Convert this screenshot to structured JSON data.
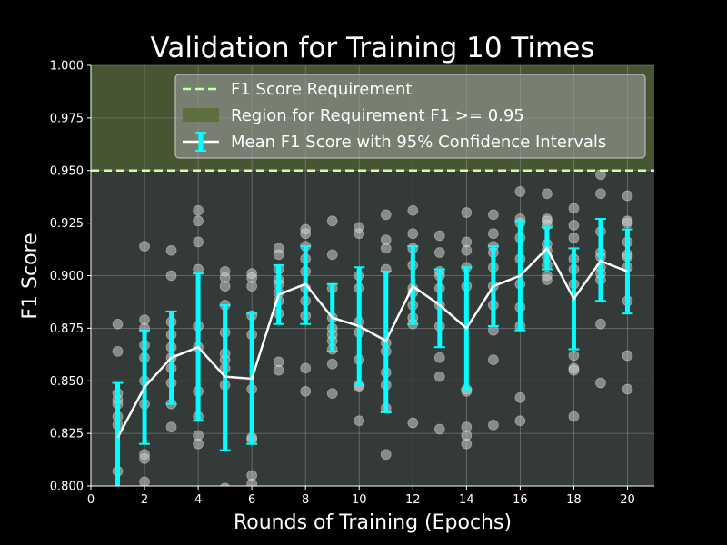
{
  "chart_data": {
    "type": "line",
    "title": "Validation for Training 10 Times",
    "xlabel": "Rounds of Training (Epochs)",
    "ylabel": "F1 Score",
    "xlim": [
      0,
      21
    ],
    "ylim": [
      0.8,
      1.0
    ],
    "x_ticks": [
      0,
      2,
      4,
      6,
      8,
      10,
      12,
      14,
      16,
      18,
      20
    ],
    "y_ticks": [
      0.8,
      0.825,
      0.85,
      0.875,
      0.9,
      0.925,
      0.95,
      0.975,
      1.0
    ],
    "x_tick_labels": [
      "0",
      "2",
      "4",
      "6",
      "8",
      "10",
      "12",
      "14",
      "16",
      "18",
      "20"
    ],
    "y_tick_labels": [
      "0.800",
      "0.825",
      "0.850",
      "0.875",
      "0.900",
      "0.925",
      "0.950",
      "0.975",
      "1.000"
    ],
    "grid": true,
    "legend_position": "top-right",
    "requirement": {
      "value": 0.95,
      "legend_label": "F1 Score Requirement",
      "region_label": "Region for Requirement F1 >= 0.95",
      "line_color": "#ccffaa",
      "region_color": "#556b2f"
    },
    "colors": {
      "background": "#000000",
      "plot_background": "#343a37",
      "mean_line": "#ffffff",
      "error_bar": "#00ffff",
      "scatter": "#cccccc",
      "grid": "#8c8c8c"
    },
    "mean_series": {
      "name": "Mean F1 Score with 95% Confidence Intervals",
      "x": [
        1,
        2,
        3,
        4,
        5,
        6,
        7,
        8,
        9,
        10,
        11,
        12,
        13,
        14,
        15,
        16,
        17,
        18,
        19,
        20
      ],
      "y": [
        0.823,
        0.847,
        0.861,
        0.866,
        0.852,
        0.851,
        0.891,
        0.896,
        0.88,
        0.876,
        0.869,
        0.895,
        0.886,
        0.875,
        0.895,
        0.9,
        0.913,
        0.889,
        0.907,
        0.902
      ],
      "ci_low": [
        0.797,
        0.82,
        0.839,
        0.831,
        0.817,
        0.82,
        0.877,
        0.877,
        0.864,
        0.848,
        0.835,
        0.877,
        0.866,
        0.846,
        0.876,
        0.874,
        0.903,
        0.865,
        0.888,
        0.882
      ],
      "ci_high": [
        0.849,
        0.874,
        0.883,
        0.901,
        0.886,
        0.882,
        0.905,
        0.914,
        0.896,
        0.904,
        0.902,
        0.914,
        0.903,
        0.904,
        0.914,
        0.926,
        0.923,
        0.913,
        0.927,
        0.922
      ]
    },
    "trials": {
      "points": [
        [
          1,
          0.877
        ],
        [
          1,
          0.864
        ],
        [
          1,
          0.844
        ],
        [
          1,
          0.841
        ],
        [
          1,
          0.839
        ],
        [
          1,
          0.833
        ],
        [
          1,
          0.829
        ],
        [
          1,
          0.807
        ],
        [
          1,
          0.795
        ],
        [
          1,
          0.798
        ],
        [
          2,
          0.914
        ],
        [
          2,
          0.879
        ],
        [
          2,
          0.875
        ],
        [
          2,
          0.867
        ],
        [
          2,
          0.861
        ],
        [
          2,
          0.85
        ],
        [
          2,
          0.839
        ],
        [
          2,
          0.815
        ],
        [
          2,
          0.813
        ],
        [
          2,
          0.802
        ],
        [
          3,
          0.912
        ],
        [
          3,
          0.9
        ],
        [
          3,
          0.878
        ],
        [
          3,
          0.872
        ],
        [
          3,
          0.866
        ],
        [
          3,
          0.861
        ],
        [
          3,
          0.856
        ],
        [
          3,
          0.849
        ],
        [
          3,
          0.839
        ],
        [
          3,
          0.828
        ],
        [
          4,
          0.931
        ],
        [
          4,
          0.926
        ],
        [
          4,
          0.916
        ],
        [
          4,
          0.903
        ],
        [
          4,
          0.876
        ],
        [
          4,
          0.866
        ],
        [
          4,
          0.845
        ],
        [
          4,
          0.833
        ],
        [
          4,
          0.824
        ],
        [
          4,
          0.82
        ],
        [
          5,
          0.902
        ],
        [
          5,
          0.899
        ],
        [
          5,
          0.895
        ],
        [
          5,
          0.886
        ],
        [
          5,
          0.873
        ],
        [
          5,
          0.863
        ],
        [
          5,
          0.86
        ],
        [
          5,
          0.856
        ],
        [
          5,
          0.848
        ],
        [
          5,
          0.799
        ],
        [
          6,
          0.901
        ],
        [
          6,
          0.899
        ],
        [
          6,
          0.895
        ],
        [
          6,
          0.881
        ],
        [
          6,
          0.872
        ],
        [
          6,
          0.846
        ],
        [
          6,
          0.823
        ],
        [
          6,
          0.822
        ],
        [
          6,
          0.805
        ],
        [
          6,
          0.801
        ],
        [
          7,
          0.913
        ],
        [
          7,
          0.91
        ],
        [
          7,
          0.903
        ],
        [
          7,
          0.898
        ],
        [
          7,
          0.896
        ],
        [
          7,
          0.892
        ],
        [
          7,
          0.888
        ],
        [
          7,
          0.882
        ],
        [
          7,
          0.859
        ],
        [
          7,
          0.855
        ],
        [
          8,
          0.922
        ],
        [
          8,
          0.92
        ],
        [
          8,
          0.914
        ],
        [
          8,
          0.908
        ],
        [
          8,
          0.902
        ],
        [
          8,
          0.894
        ],
        [
          8,
          0.888
        ],
        [
          8,
          0.881
        ],
        [
          8,
          0.856
        ],
        [
          8,
          0.845
        ],
        [
          9,
          0.926
        ],
        [
          9,
          0.91
        ],
        [
          9,
          0.894
        ],
        [
          9,
          0.88
        ],
        [
          9,
          0.875
        ],
        [
          9,
          0.872
        ],
        [
          9,
          0.869
        ],
        [
          9,
          0.865
        ],
        [
          9,
          0.858
        ],
        [
          9,
          0.844
        ],
        [
          10,
          0.923
        ],
        [
          10,
          0.92
        ],
        [
          10,
          0.9
        ],
        [
          10,
          0.894
        ],
        [
          10,
          0.878
        ],
        [
          10,
          0.873
        ],
        [
          10,
          0.86
        ],
        [
          10,
          0.848
        ],
        [
          10,
          0.847
        ],
        [
          10,
          0.831
        ],
        [
          11,
          0.929
        ],
        [
          11,
          0.917
        ],
        [
          11,
          0.913
        ],
        [
          11,
          0.903
        ],
        [
          11,
          0.868
        ],
        [
          11,
          0.864
        ],
        [
          11,
          0.854
        ],
        [
          11,
          0.848
        ],
        [
          11,
          0.837
        ],
        [
          11,
          0.815
        ],
        [
          12,
          0.931
        ],
        [
          12,
          0.92
        ],
        [
          12,
          0.913
        ],
        [
          12,
          0.905
        ],
        [
          12,
          0.894
        ],
        [
          12,
          0.892
        ],
        [
          12,
          0.886
        ],
        [
          12,
          0.88
        ],
        [
          12,
          0.877
        ],
        [
          12,
          0.83
        ],
        [
          13,
          0.919
        ],
        [
          13,
          0.911
        ],
        [
          13,
          0.902
        ],
        [
          13,
          0.9
        ],
        [
          13,
          0.894
        ],
        [
          13,
          0.886
        ],
        [
          13,
          0.876
        ],
        [
          13,
          0.861
        ],
        [
          13,
          0.852
        ],
        [
          13,
          0.827
        ],
        [
          14,
          0.93
        ],
        [
          14,
          0.916
        ],
        [
          14,
          0.912
        ],
        [
          14,
          0.904
        ],
        [
          14,
          0.895
        ],
        [
          14,
          0.845
        ],
        [
          14,
          0.828
        ],
        [
          14,
          0.824
        ],
        [
          14,
          0.82
        ],
        [
          14,
          0.846
        ],
        [
          15,
          0.929
        ],
        [
          15,
          0.92
        ],
        [
          15,
          0.914
        ],
        [
          15,
          0.911
        ],
        [
          15,
          0.904
        ],
        [
          15,
          0.895
        ],
        [
          15,
          0.886
        ],
        [
          15,
          0.874
        ],
        [
          15,
          0.86
        ],
        [
          15,
          0.829
        ],
        [
          16,
          0.94
        ],
        [
          16,
          0.927
        ],
        [
          16,
          0.925
        ],
        [
          16,
          0.918
        ],
        [
          16,
          0.908
        ],
        [
          16,
          0.896
        ],
        [
          16,
          0.885
        ],
        [
          16,
          0.876
        ],
        [
          16,
          0.842
        ],
        [
          16,
          0.831
        ],
        [
          17,
          0.939
        ],
        [
          17,
          0.927
        ],
        [
          17,
          0.926
        ],
        [
          17,
          0.924
        ],
        [
          17,
          0.915
        ],
        [
          17,
          0.912
        ],
        [
          17,
          0.909
        ],
        [
          17,
          0.905
        ],
        [
          17,
          0.9
        ],
        [
          17,
          0.898
        ],
        [
          18,
          0.932
        ],
        [
          18,
          0.924
        ],
        [
          18,
          0.918
        ],
        [
          18,
          0.908
        ],
        [
          18,
          0.903
        ],
        [
          18,
          0.896
        ],
        [
          18,
          0.862
        ],
        [
          18,
          0.856
        ],
        [
          18,
          0.855
        ],
        [
          18,
          0.833
        ],
        [
          19,
          0.948
        ],
        [
          19,
          0.939
        ],
        [
          19,
          0.921
        ],
        [
          19,
          0.911
        ],
        [
          19,
          0.909
        ],
        [
          19,
          0.904
        ],
        [
          19,
          0.901
        ],
        [
          19,
          0.898
        ],
        [
          19,
          0.877
        ],
        [
          19,
          0.849
        ],
        [
          20,
          0.938
        ],
        [
          20,
          0.926
        ],
        [
          20,
          0.925
        ],
        [
          20,
          0.916
        ],
        [
          20,
          0.91
        ],
        [
          20,
          0.909
        ],
        [
          20,
          0.904
        ],
        [
          20,
          0.888
        ],
        [
          20,
          0.862
        ],
        [
          20,
          0.846
        ]
      ]
    }
  }
}
